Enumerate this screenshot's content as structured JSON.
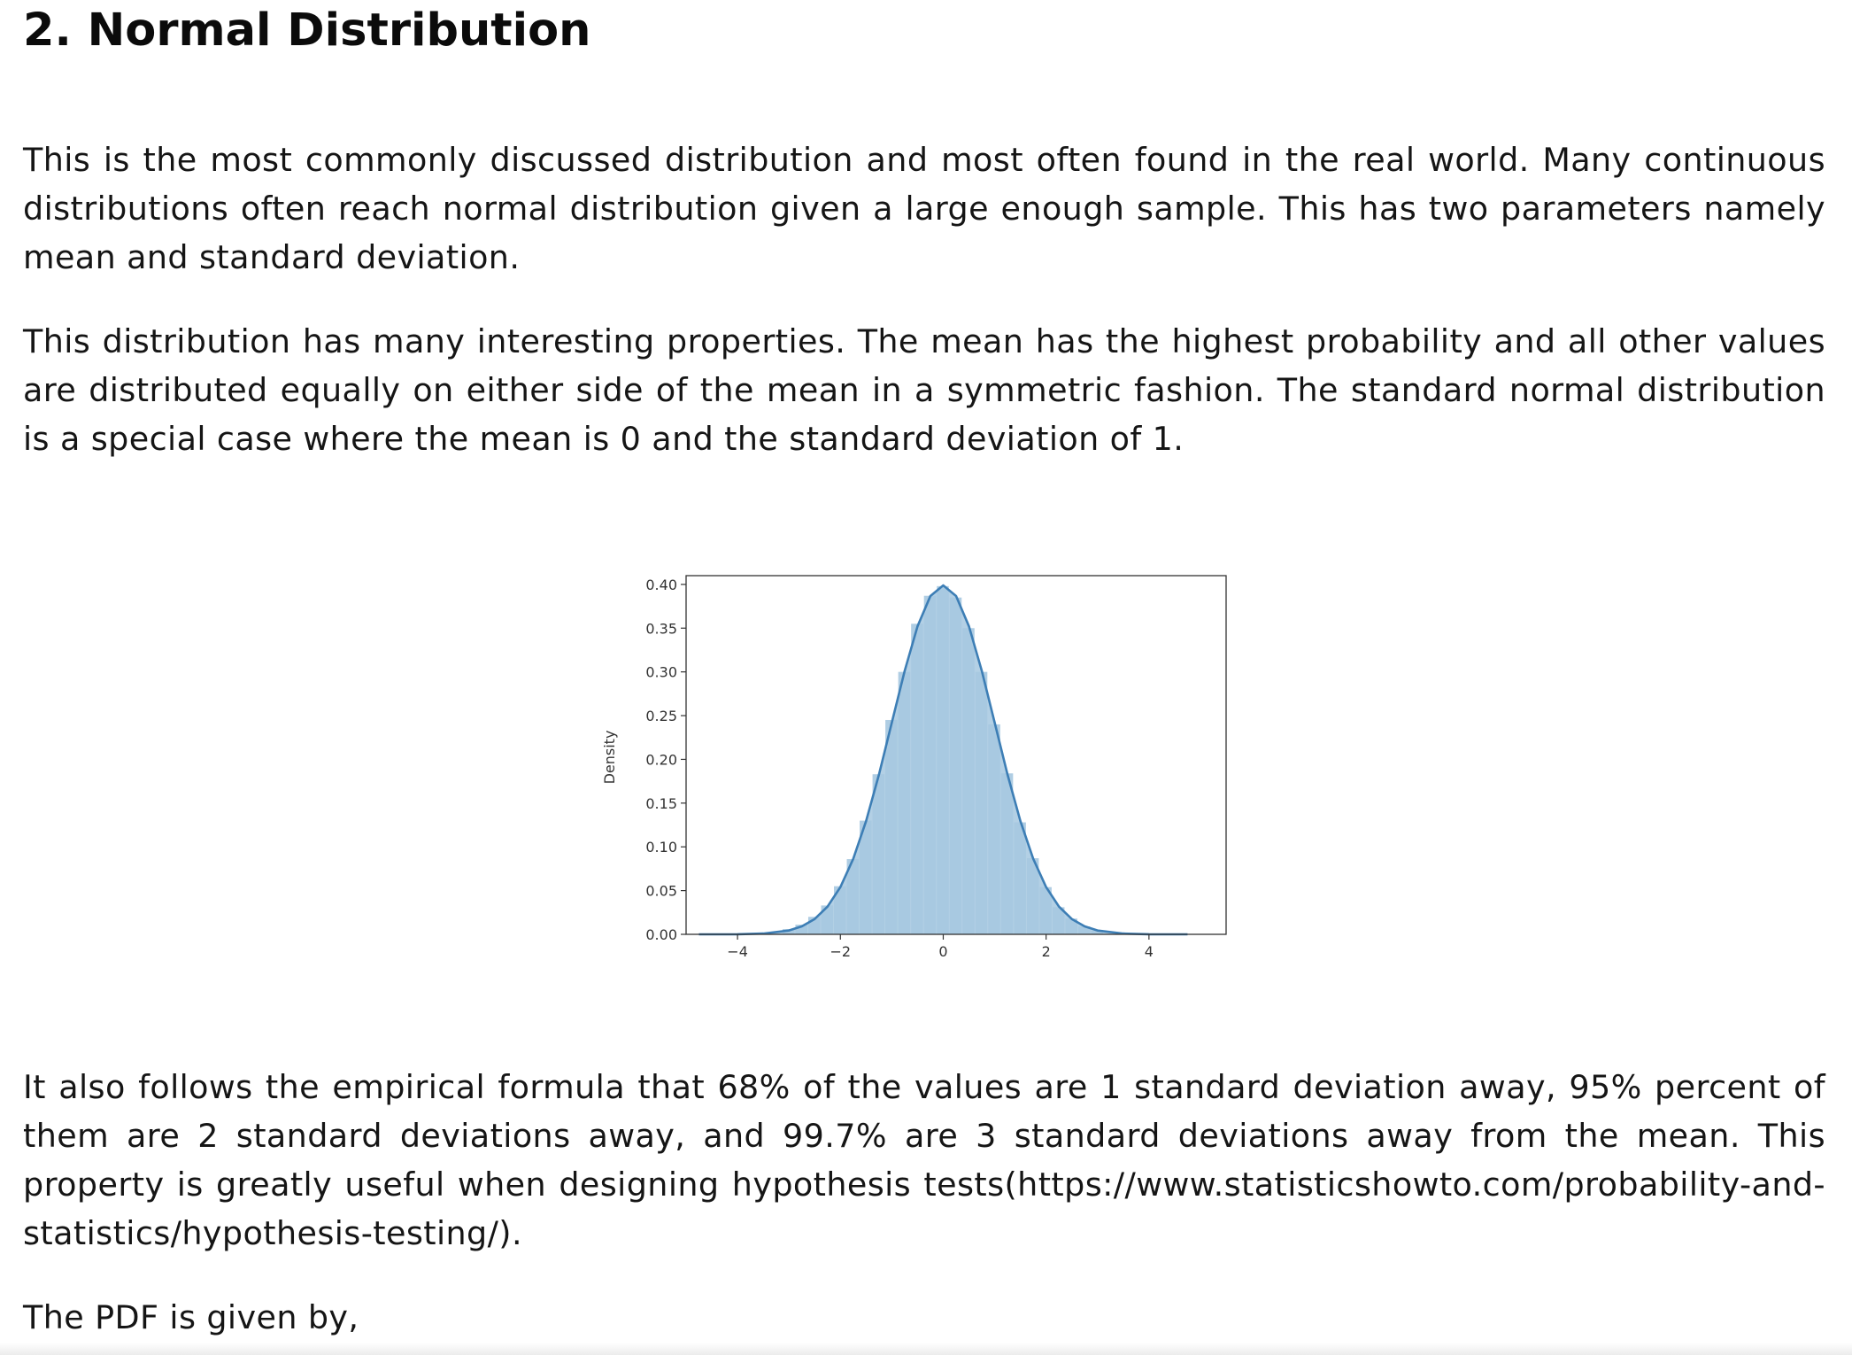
{
  "heading": "2. Normal Distribution",
  "paragraphs": [
    "This is the most commonly discussed distribution and most often found in the real world. Many continuous distributions often reach normal distribution given a large enough sample. This has two parameters namely mean and standard deviation.",
    "This distribution has many interesting properties. The mean has the highest probability and all other values are distributed equally on either side of the mean in a symmetric fashion. The standard normal distribution is a special case where the mean is 0 and the standard deviation of 1.",
    "It also follows the empirical formula that 68% of the values are 1 standard deviation away, 95% percent of them are 2 standard deviations away, and 99.7% are 3 standard deviations away from the mean. This property is greatly useful when designing hypothesis tests(https://www.statisticshowto.com/probability-and-statistics/hypothesis-testing/).",
    "The PDF is given by,"
  ],
  "chart_data": {
    "type": "area",
    "ylabel": "Density",
    "xlabel": "",
    "xlim": [
      -5.0,
      5.5
    ],
    "ylim": [
      0.0,
      0.41
    ],
    "x_ticks": [
      -4,
      -2,
      0,
      2,
      4
    ],
    "x_tick_labels": [
      "−4",
      "−2",
      "0",
      "2",
      "4"
    ],
    "y_ticks": [
      0.0,
      0.05,
      0.1,
      0.15,
      0.2,
      0.25,
      0.3,
      0.35,
      0.4
    ],
    "y_tick_labels": [
      "0.00",
      "0.05",
      "0.10",
      "0.15",
      "0.20",
      "0.25",
      "0.30",
      "0.35",
      "0.40"
    ],
    "grid": false,
    "series": [
      {
        "kind": "histogram",
        "color": "#a6c8e0",
        "x": [
          -3.0,
          -2.75,
          -2.5,
          -2.25,
          -2.0,
          -1.75,
          -1.5,
          -1.25,
          -1.0,
          -0.75,
          -0.5,
          -0.25,
          0.0,
          0.25,
          0.5,
          0.75,
          1.0,
          1.25,
          1.5,
          1.75,
          2.0,
          2.25,
          2.5,
          2.75,
          3.0
        ],
        "values": [
          0.006,
          0.011,
          0.02,
          0.033,
          0.055,
          0.086,
          0.13,
          0.183,
          0.245,
          0.3,
          0.355,
          0.387,
          0.398,
          0.385,
          0.35,
          0.3,
          0.24,
          0.184,
          0.128,
          0.087,
          0.054,
          0.031,
          0.018,
          0.009,
          0.004
        ]
      },
      {
        "kind": "kde",
        "color": "#3d7eb5",
        "x": [
          -4.75,
          -4.0,
          -3.5,
          -3.0,
          -2.75,
          -2.5,
          -2.25,
          -2.0,
          -1.75,
          -1.5,
          -1.25,
          -1.0,
          -0.75,
          -0.5,
          -0.25,
          0.0,
          0.25,
          0.5,
          0.75,
          1.0,
          1.25,
          1.5,
          1.75,
          2.0,
          2.25,
          2.5,
          2.75,
          3.0,
          3.5,
          4.0,
          4.75
        ],
        "values": [
          0.0,
          0.0001,
          0.0009,
          0.0044,
          0.0091,
          0.0175,
          0.0317,
          0.054,
          0.0863,
          0.1295,
          0.1826,
          0.242,
          0.3011,
          0.3521,
          0.3867,
          0.3989,
          0.3867,
          0.3521,
          0.3011,
          0.242,
          0.1826,
          0.1295,
          0.0863,
          0.054,
          0.0317,
          0.0175,
          0.0091,
          0.0044,
          0.0009,
          0.0001,
          0.0
        ]
      }
    ]
  }
}
